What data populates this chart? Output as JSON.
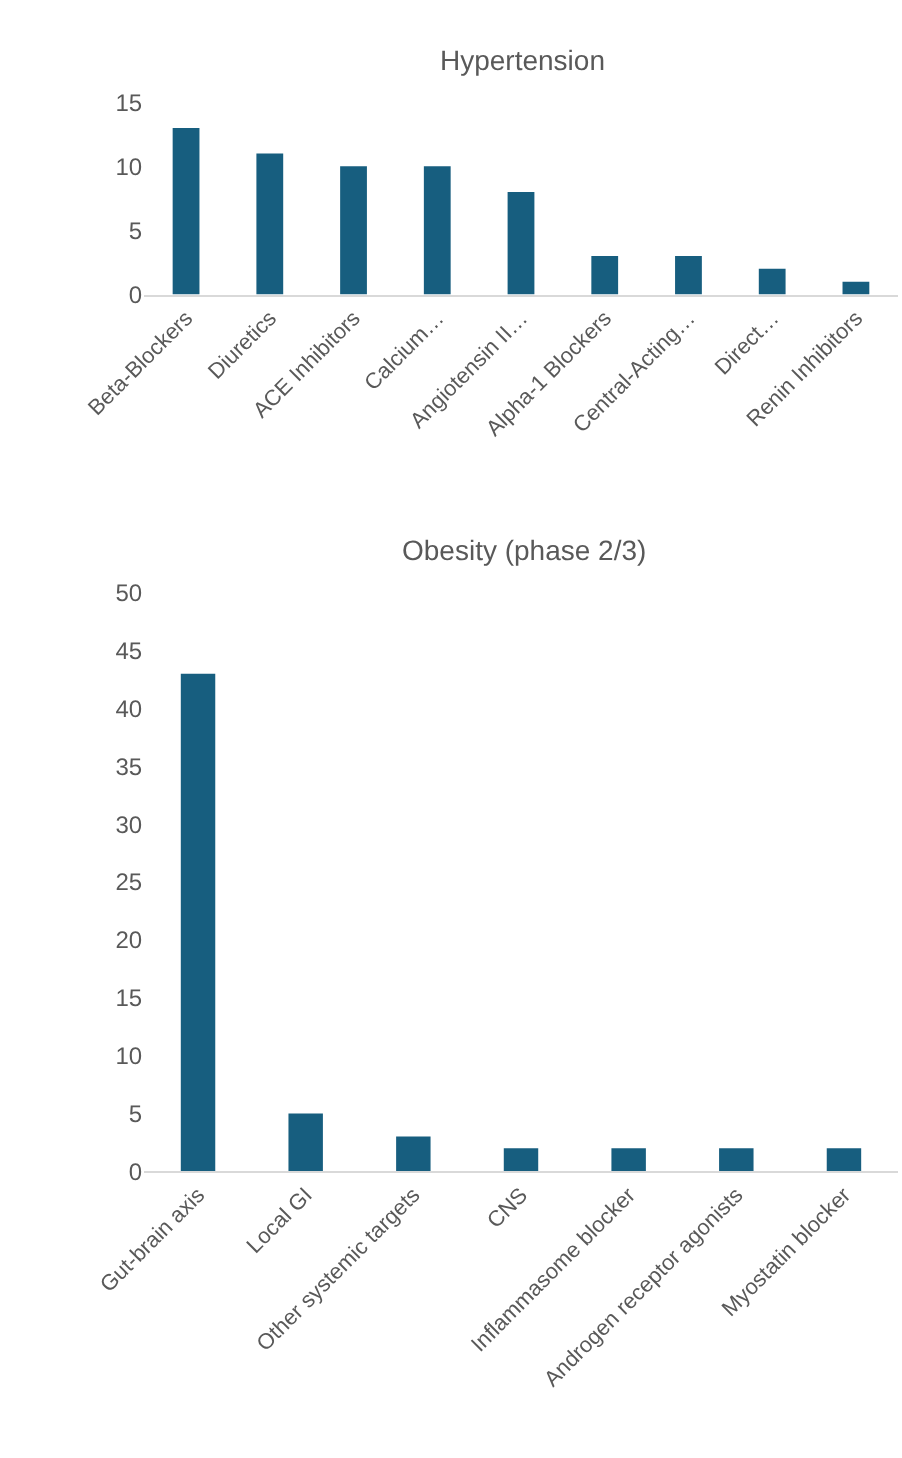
{
  "chart_data": [
    {
      "type": "bar",
      "title": "Hypertension",
      "categories": [
        "Beta-Blockers",
        "Diuretics",
        "ACE Inhibitors",
        "Calcium…",
        "Angiotensin II…",
        "Alpha-1 Blockers",
        "Central-Acting…",
        "Direct…",
        "Renin Inhibitors"
      ],
      "values": [
        13,
        11,
        10,
        10,
        8,
        3,
        3,
        2,
        1
      ],
      "color": "#175e7f",
      "ylim": [
        0,
        15
      ],
      "yticks": [
        0,
        5,
        10,
        15
      ],
      "grid": false
    },
    {
      "type": "bar",
      "title": "Obesity (phase 2/3)",
      "categories": [
        "Gut-brain axis",
        "Local GI",
        "Other systemic targets",
        "CNS",
        "Inflammasome blocker",
        "Androgen receptor agonists",
        "Myostatin blocker"
      ],
      "values": [
        43,
        5,
        3,
        2,
        2,
        2,
        2
      ],
      "color": "#175e7f",
      "ylim": [
        0,
        50
      ],
      "yticks": [
        0,
        5,
        10,
        15,
        20,
        25,
        30,
        35,
        40,
        45,
        50
      ],
      "grid": false
    }
  ]
}
